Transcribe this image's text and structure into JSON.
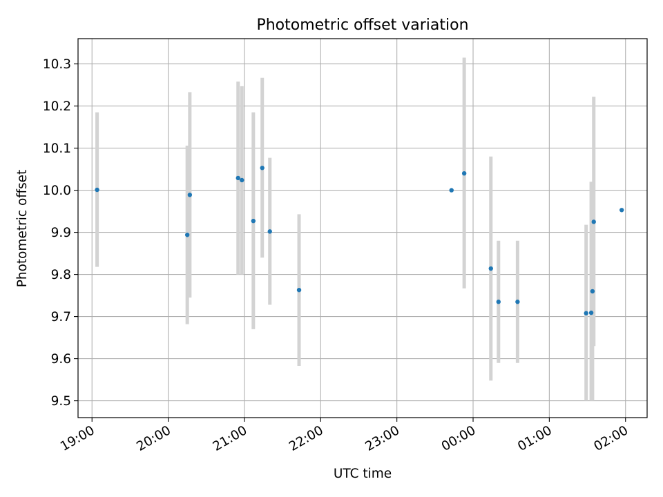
{
  "chart_data": {
    "type": "scatter",
    "title": "Photometric offset variation",
    "xlabel": "UTC time",
    "ylabel": "Photometric offset",
    "x_axis": {
      "kind": "time",
      "range": [
        "18:49",
        "02:17"
      ],
      "ticks": [
        "19:00",
        "20:00",
        "21:00",
        "22:00",
        "23:00",
        "00:00",
        "01:00",
        "02:00"
      ]
    },
    "y_axis": {
      "range": [
        9.46,
        10.36
      ],
      "ticks": [
        "9.5",
        "9.6",
        "9.7",
        "9.8",
        "9.9",
        "10.0",
        "10.1",
        "10.2",
        "10.3"
      ]
    },
    "grid": true,
    "colors": {
      "marker": "#1f77b4",
      "errorbar": "#d3d3d3",
      "grid": "#b0b0b0"
    },
    "points": [
      {
        "time": "19:04",
        "y": 10.001,
        "ylow": 9.818,
        "yhigh": 10.185
      },
      {
        "time": "20:15",
        "y": 9.894,
        "ylow": 9.682,
        "yhigh": 10.106
      },
      {
        "time": "20:17",
        "y": 9.989,
        "ylow": 9.745,
        "yhigh": 10.233
      },
      {
        "time": "20:55",
        "y": 10.029,
        "ylow": 9.8,
        "yhigh": 10.258
      },
      {
        "time": "20:58",
        "y": 10.024,
        "ylow": 9.8,
        "yhigh": 10.247
      },
      {
        "time": "21:07",
        "y": 9.927,
        "ylow": 9.67,
        "yhigh": 10.185
      },
      {
        "time": "21:14",
        "y": 10.053,
        "ylow": 9.84,
        "yhigh": 10.267
      },
      {
        "time": "21:20",
        "y": 9.902,
        "ylow": 9.728,
        "yhigh": 10.077
      },
      {
        "time": "21:43",
        "y": 9.763,
        "ylow": 9.583,
        "yhigh": 9.943
      },
      {
        "time": "23:43",
        "y": 10.0,
        "ylow": 10.0,
        "yhigh": 10.0
      },
      {
        "time": "23:53",
        "y": 10.04,
        "ylow": 9.767,
        "yhigh": 10.315
      },
      {
        "time": "00:14",
        "y": 9.814,
        "ylow": 9.548,
        "yhigh": 10.08
      },
      {
        "time": "00:20",
        "y": 9.735,
        "ylow": 9.59,
        "yhigh": 9.88
      },
      {
        "time": "00:35",
        "y": 9.735,
        "ylow": 9.59,
        "yhigh": 9.88
      },
      {
        "time": "01:29",
        "y": 9.708,
        "ylow": 9.5,
        "yhigh": 9.918
      },
      {
        "time": "01:33",
        "y": 9.709,
        "ylow": 9.5,
        "yhigh": 10.02
      },
      {
        "time": "01:34",
        "y": 9.76,
        "ylow": 9.5,
        "yhigh": 10.02
      },
      {
        "time": "01:35",
        "y": 9.925,
        "ylow": 9.63,
        "yhigh": 10.222
      },
      {
        "time": "01:57",
        "y": 9.953,
        "ylow": 9.953,
        "yhigh": 9.953
      }
    ]
  }
}
